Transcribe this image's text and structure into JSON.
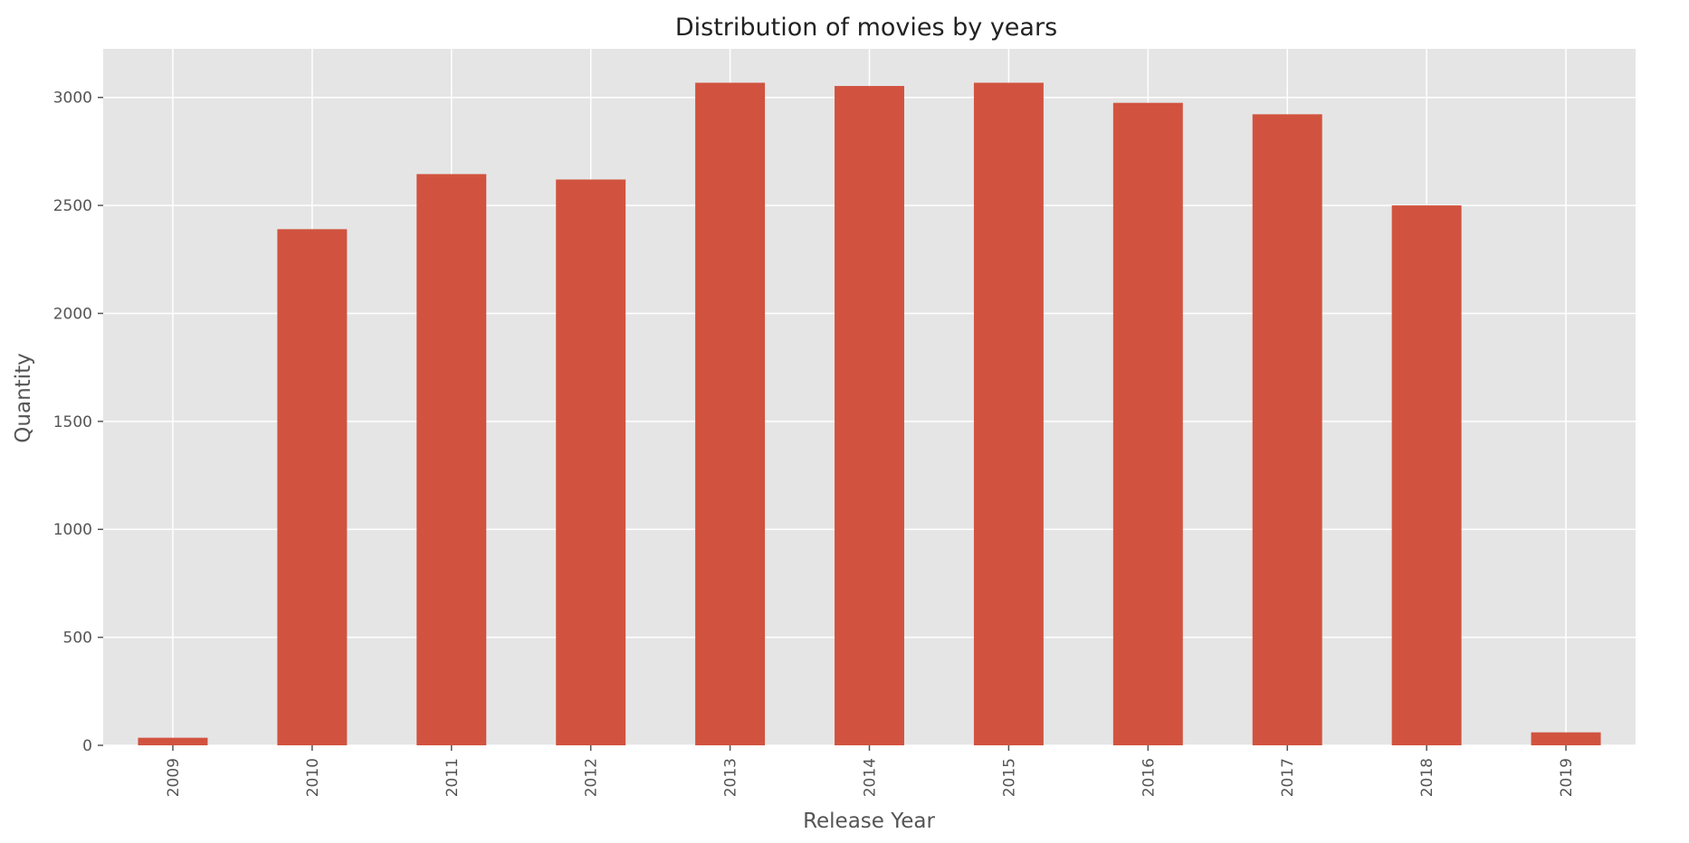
{
  "chart_data": {
    "type": "bar",
    "title": "Distribution of movies by years",
    "xlabel": "Release Year",
    "ylabel": "Quantity",
    "categories": [
      "2009",
      "2010",
      "2011",
      "2012",
      "2013",
      "2014",
      "2015",
      "2016",
      "2017",
      "2018",
      "2019"
    ],
    "values": [
      35,
      2390,
      2645,
      2620,
      3068,
      3053,
      3068,
      2975,
      2922,
      2500,
      60
    ],
    "ylim": [
      0,
      3225
    ],
    "yticks": [
      0,
      500,
      1000,
      1500,
      2000,
      2500,
      3000
    ],
    "grid": true,
    "legend": false,
    "colors": {
      "bar": "#d1533f",
      "plot_background": "#e5e5e5",
      "grid": "#ffffff",
      "figure_background": "#ffffff"
    }
  }
}
